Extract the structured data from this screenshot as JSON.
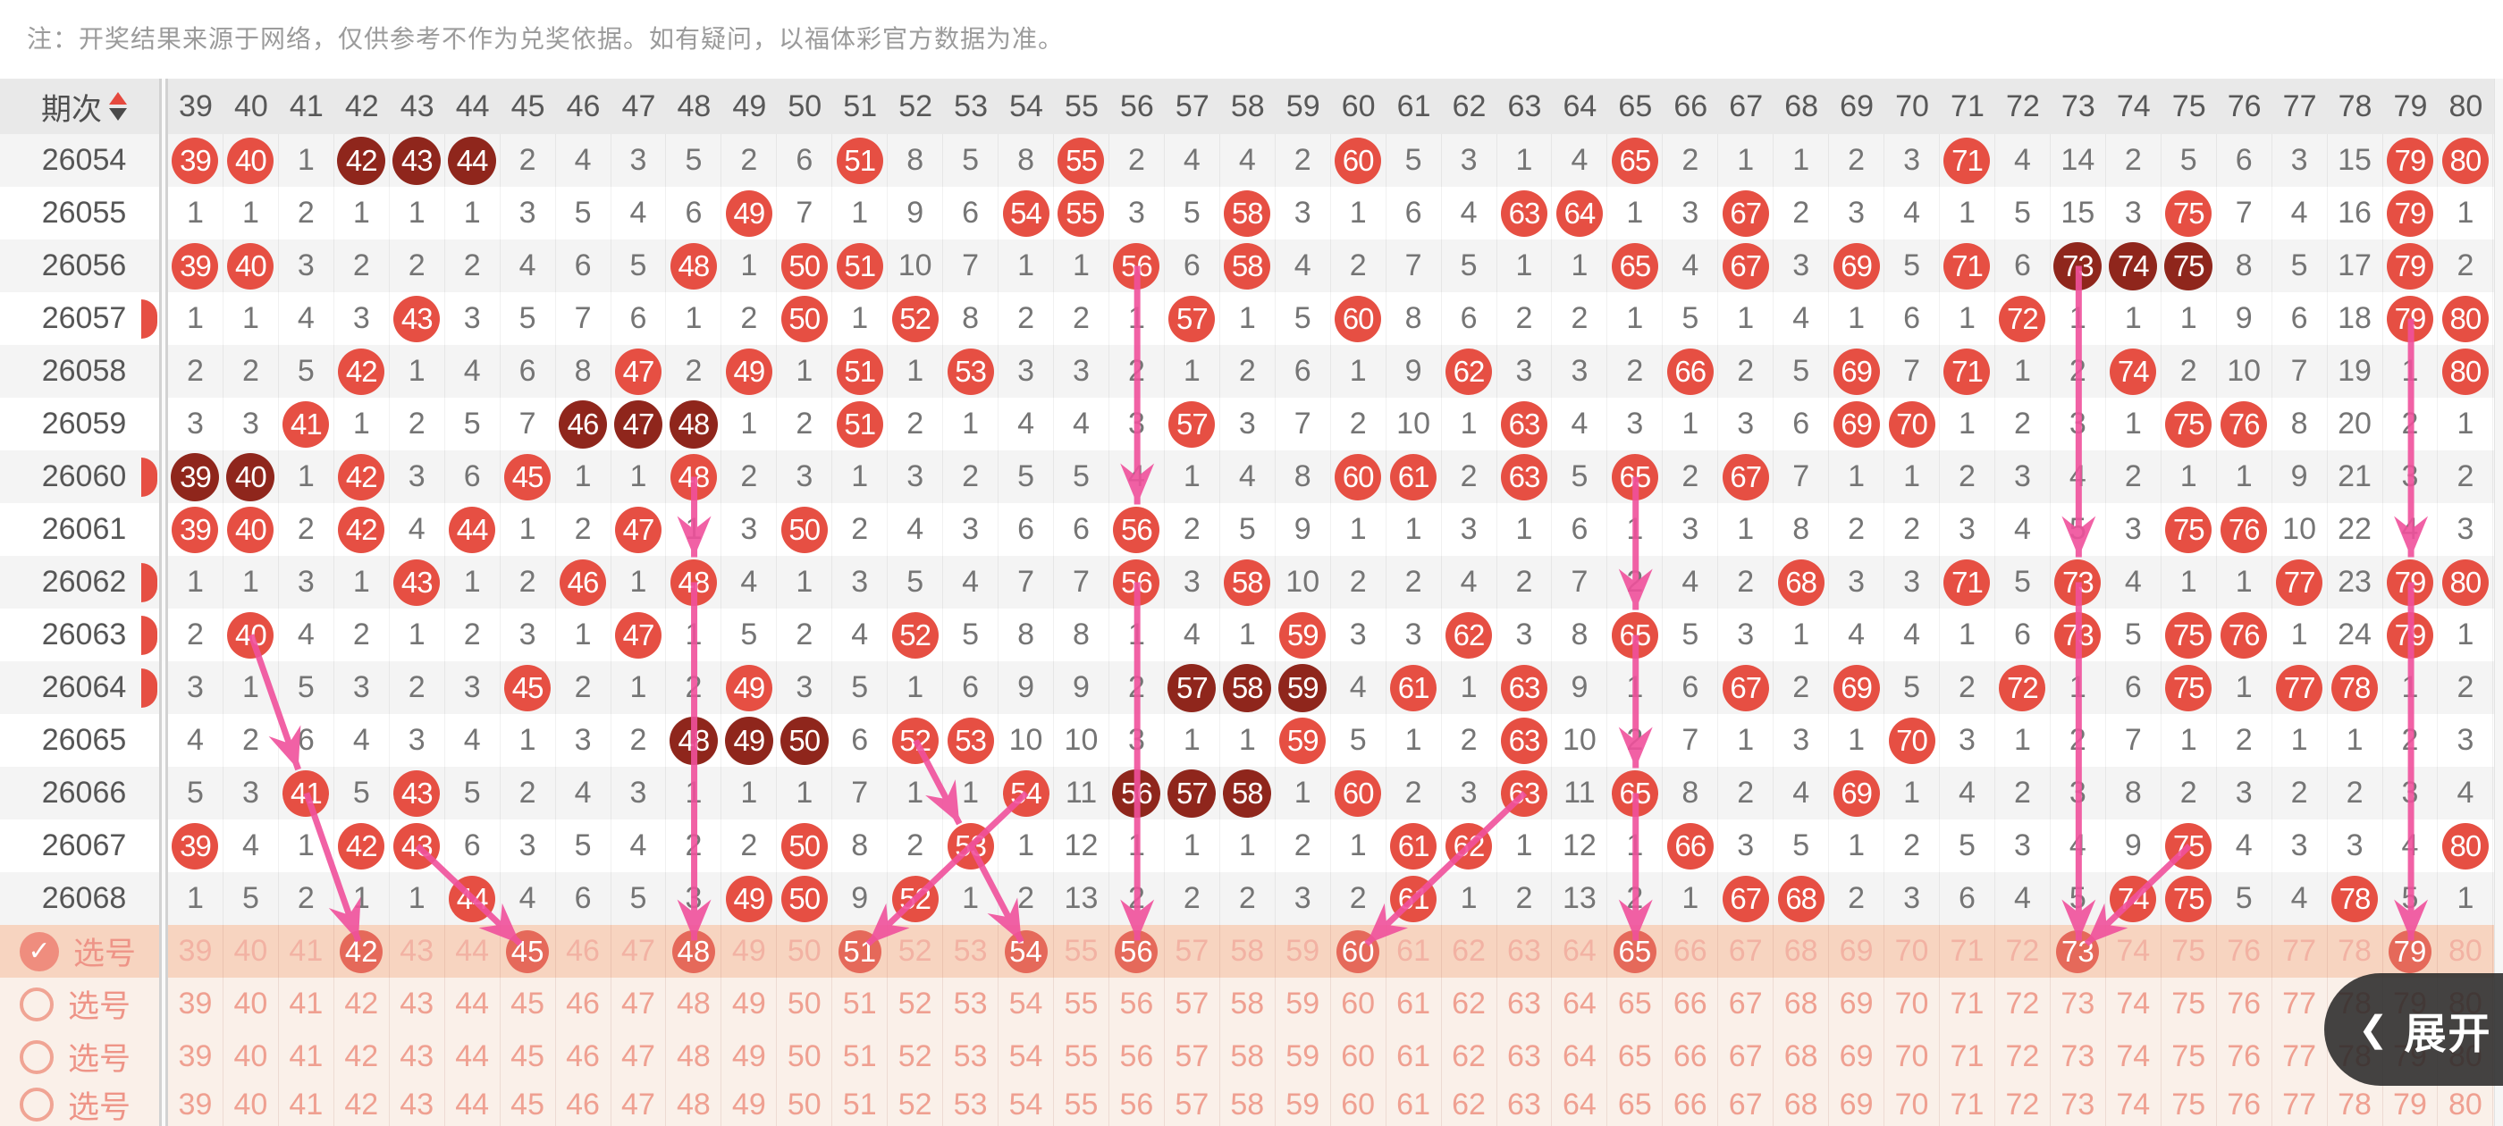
{
  "note": "注：开奖结果来源于网络，仅供参考不作为兑奖依据。如有疑问，以福体彩官方数据为准。",
  "header": {
    "period_label": "期次",
    "sort_icons": [
      "sort-asc-triangle",
      "sort-desc-triangle"
    ],
    "columns": [
      39,
      40,
      41,
      42,
      43,
      44,
      45,
      46,
      47,
      48,
      49,
      50,
      51,
      52,
      53,
      54,
      55,
      56,
      57,
      58,
      59,
      60,
      61,
      62,
      63,
      64,
      65,
      66,
      67,
      68,
      69,
      70,
      71,
      72,
      73,
      74,
      75,
      76,
      77,
      78,
      79,
      80
    ]
  },
  "cell_legend": {
    "plain": "miss count",
    "C##": "drawn number (red circle)",
    "D##": "drawn number, consecutive-number group (dark red circle)"
  },
  "rows": [
    {
      "period": "26054",
      "cells": "C39 C40 1 D42 D43 D44 2 4 3 5 2 6 C51 8 5 8 C55 2 4 4 2 C60 5 3 1 4 C65 2 1 1 2 3 C71 4 14 2 5 6 3 15 C79 C80"
    },
    {
      "period": "26055",
      "cells": "1 1 2 1 1 1 3 5 4 6 C49 7 1 9 6 C54 C55 3 5 C58 3 1 6 4 C63 C64 1 3 C67 2 3 4 1 5 15 3 C75 7 4 16 C79 1"
    },
    {
      "period": "26056",
      "cells": "C39 C40 3 2 2 2 4 6 5 C48 1 C50 C51 10 7 1 1 C56 6 C58 4 2 7 5 1 1 C65 4 C67 3 C69 5 C71 6 D73 D74 D75 8 5 17 C79 2"
    },
    {
      "period": "26057",
      "cells": "1 1 4 3 C43 3 5 7 6 1 2 C50 1 C52 8 2 2 1 C57 1 5 C60 8 6 2 2 1 5 1 4 1 6 1 C72 1 1 1 9 6 18 C79 C80"
    },
    {
      "period": "26058",
      "cells": "2 2 5 C42 1 4 6 8 C47 2 C49 1 C51 1 C53 3 3 2 1 2 6 1 9 C62 3 3 2 C66 2 5 C69 7 C71 1 2 C74 2 10 7 19 1 C80"
    },
    {
      "period": "26059",
      "cells": "3 3 C41 1 2 5 7 D46 D47 D48 1 2 C51 2 1 4 4 3 C57 3 7 2 10 1 C63 4 3 1 3 6 C69 C70 1 2 3 1 C75 C76 8 20 2 1"
    },
    {
      "period": "26060",
      "cells": "D39 D40 1 C42 3 6 C45 1 1 C48 2 3 1 3 2 5 5 4 1 4 8 C60 C61 2 C63 5 C65 2 C67 7 1 1 2 3 4 2 1 1 9 21 3 2"
    },
    {
      "period": "26061",
      "cells": "C39 C40 2 C42 4 C44 1 2 C47 1 3 C50 2 4 3 6 6 C56 2 5 9 1 1 3 1 6 1 3 1 8 2 2 3 4 5 3 C75 C76 10 22 4 3"
    },
    {
      "period": "26062",
      "cells": "1 1 3 1 C43 1 2 C46 1 C48 4 1 3 5 4 7 7 C56 3 C58 10 2 2 4 2 7 2 4 2 C68 3 3 C71 5 C73 4 1 1 C77 23 C79 C80"
    },
    {
      "period": "26063",
      "cells": "2 C40 4 2 1 2 3 1 C47 1 5 2 4 C52 5 8 8 1 4 1 C59 3 3 C62 3 8 C65 5 3 1 4 4 1 6 C73 5 C75 C76 1 24 C79 1"
    },
    {
      "period": "26064",
      "cells": "3 1 5 3 2 3 C45 2 1 2 C49 3 5 1 6 9 9 2 D57 D58 D59 4 C61 1 C63 9 1 6 C67 2 C69 5 2 C72 1 6 C75 1 C77 C78 1 2"
    },
    {
      "period": "26065",
      "cells": "4 2 6 4 3 4 1 3 2 D48 D49 D50 6 C52 C53 10 10 3 1 1 C59 5 1 2 C63 10 2 7 1 3 1 C70 3 1 2 7 1 2 1 1 2 3"
    },
    {
      "period": "26066",
      "cells": "5 3 C41 5 C43 5 2 4 3 1 1 1 7 1 1 C54 11 D56 D57 D58 1 C60 2 3 C63 11 C65 8 2 4 C69 1 4 2 3 8 2 3 2 2 3 4"
    },
    {
      "period": "26067",
      "cells": "C39 4 1 C42 C43 6 3 5 4 2 2 C50 8 2 C53 1 12 1 1 1 2 1 C61 C62 1 12 1 C66 3 5 1 2 5 3 4 9 C75 4 3 3 4 C80"
    },
    {
      "period": "26068",
      "cells": "1 5 2 1 1 C44 4 6 5 3 C49 C50 9 C52 1 2 13 2 2 2 3 2 C61 1 2 13 2 1 C67 C68 2 3 6 4 5 C74 C75 5 4 C78 5 1"
    }
  ],
  "left_slivers": [
    "26057",
    "26060",
    "26062",
    "26063",
    "26064"
  ],
  "selection_rows": [
    {
      "label": "选号",
      "checked": true,
      "selected": [
        42,
        45,
        48,
        51,
        54,
        56,
        60,
        65,
        73,
        79
      ]
    },
    {
      "label": "选号",
      "checked": false,
      "selected": []
    },
    {
      "label": "选号",
      "checked": false,
      "selected": []
    },
    {
      "label": "选号",
      "checked": false,
      "selected": []
    }
  ],
  "arrows": [
    {
      "from": [
        "26063",
        40
      ],
      "to": [
        "26066",
        41
      ]
    },
    {
      "from": [
        "26066",
        41
      ],
      "to": [
        "sel",
        42
      ]
    },
    {
      "from": [
        "26067",
        43
      ],
      "to": [
        "sel",
        45
      ]
    },
    {
      "from": [
        "26060",
        48
      ],
      "to": [
        "26062",
        48
      ]
    },
    {
      "from": [
        "26062",
        48
      ],
      "to": [
        "sel",
        48
      ]
    },
    {
      "from": [
        "26065",
        52
      ],
      "to": [
        "26067",
        53
      ]
    },
    {
      "from": [
        "26066",
        54
      ],
      "to": [
        "sel",
        51
      ]
    },
    {
      "from": [
        "26067",
        53
      ],
      "to": [
        "sel",
        54
      ]
    },
    {
      "from": [
        "26056",
        56
      ],
      "to": [
        "26061",
        56
      ]
    },
    {
      "from": [
        "26062",
        56
      ],
      "to": [
        "sel",
        56
      ]
    },
    {
      "from": [
        "26066",
        63
      ],
      "to": [
        "sel",
        60
      ]
    },
    {
      "from": [
        "26060",
        65
      ],
      "to": [
        "26063",
        65
      ]
    },
    {
      "from": [
        "26063",
        65
      ],
      "to": [
        "26066",
        65
      ]
    },
    {
      "from": [
        "26066",
        65
      ],
      "to": [
        "sel",
        65
      ]
    },
    {
      "from": [
        "26056",
        73
      ],
      "to": [
        "26062",
        73
      ]
    },
    {
      "from": [
        "26062",
        73
      ],
      "to": [
        "sel",
        73
      ]
    },
    {
      "from": [
        "26067",
        75
      ],
      "to": [
        "sel",
        73
      ]
    },
    {
      "from": [
        "26057",
        79
      ],
      "to": [
        "26062",
        79
      ]
    },
    {
      "from": [
        "26062",
        79
      ],
      "to": [
        "sel",
        79
      ]
    }
  ],
  "expand_button": {
    "chevron": "❮",
    "label": "展开"
  },
  "colors": {
    "hit_circle": "#e64f43",
    "hit_circle_consecutive": "#8f261c",
    "arrow_pink": "#f0519c",
    "header_bg": "#e9e9e9",
    "row_stripe": "#f4f4f4",
    "note_text": "#9b9b9b",
    "miss_text": "#757575",
    "sel_row1_bg": "#f7d4c0",
    "sel_rows_bg": "#faf0e9",
    "sel_circle": "#e5695a",
    "sel_number": "#f2b2a3",
    "sel_number_light": "#efa091",
    "expand_bg": "rgba(40,40,40,0.87)"
  }
}
